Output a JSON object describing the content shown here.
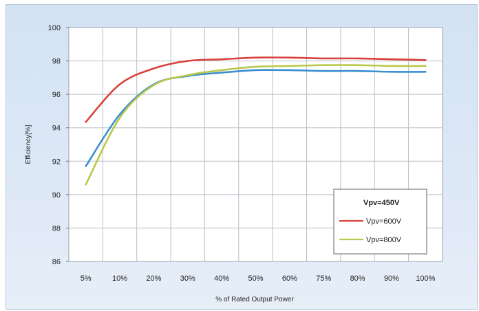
{
  "chart_data": {
    "type": "line",
    "title": "",
    "xlabel": "% of Rated Output Power",
    "ylabel": "Efficiency[%]",
    "ylim": [
      86,
      100
    ],
    "yticks": [
      "100",
      "98",
      "96",
      "94",
      "92",
      "90",
      "88",
      "86"
    ],
    "categories": [
      "5%",
      "10%",
      "20%",
      "30%",
      "40%",
      "50%",
      "60%",
      "75%",
      "80%",
      "90%",
      "100%"
    ],
    "grid": true,
    "legend_position": "bottom-right",
    "series": [
      {
        "name": "Vpv=450V",
        "color": "#3b8fcf",
        "bold_label": true,
        "values": [
          91.7,
          94.8,
          96.6,
          97.1,
          97.3,
          97.45,
          97.45,
          97.4,
          97.4,
          97.35,
          97.35
        ]
      },
      {
        "name": "Vpv=600V",
        "color": "#d9423c",
        "bold_label": false,
        "values": [
          94.35,
          96.6,
          97.55,
          98.0,
          98.1,
          98.2,
          98.2,
          98.15,
          98.15,
          98.1,
          98.05
        ]
      },
      {
        "name": "Vpv=800V",
        "color": "#b8c84a",
        "bold_label": false,
        "values": [
          90.6,
          94.6,
          96.55,
          97.15,
          97.45,
          97.65,
          97.7,
          97.75,
          97.75,
          97.7,
          97.7
        ]
      }
    ]
  }
}
